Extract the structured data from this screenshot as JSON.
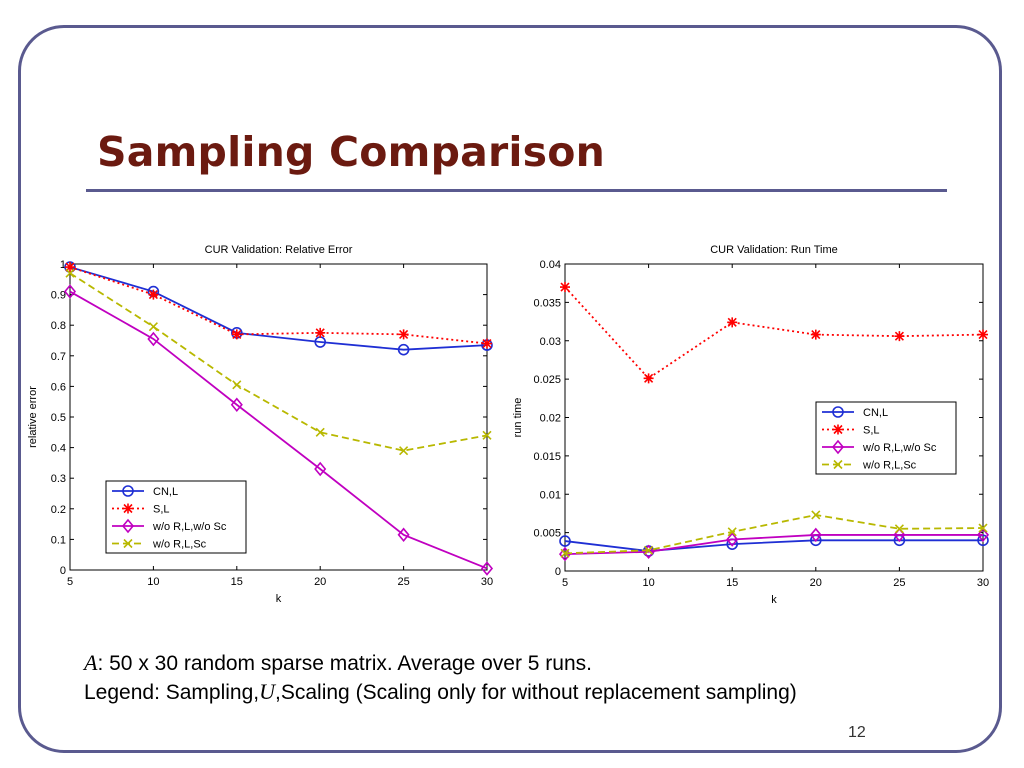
{
  "slide": {
    "title": "Sampling Comparison",
    "caption_line1": {
      "var": "A",
      "text": ": 50 x 30 random sparse matrix.  Average over 5 runs."
    },
    "caption_line2": {
      "before": "Legend: Sampling,",
      "var": "U",
      "after": ",Scaling (Scaling only for without replacement sampling)"
    },
    "page_number": "12"
  },
  "chart_data": [
    {
      "type": "line",
      "title": "CUR Validation: Relative Error",
      "xlabel": "k",
      "ylabel": "relative error",
      "xlim": [
        5,
        30
      ],
      "ylim": [
        0,
        1
      ],
      "x_ticks": [
        "5",
        "10",
        "15",
        "20",
        "25",
        "30"
      ],
      "y_ticks": [
        "0",
        "0.1",
        "0.2",
        "0.3",
        "0.4",
        "0.5",
        "0.6",
        "0.7",
        "0.8",
        "0.9",
        "1"
      ],
      "legend_position": "bottom-left",
      "x": [
        5,
        10,
        15,
        20,
        25,
        30
      ],
      "series": [
        {
          "name": "CN,L",
          "color": "#1f2fd4",
          "dash": "solid",
          "marker": "circle",
          "values": [
            0.99,
            0.91,
            0.775,
            0.745,
            0.72,
            0.735
          ]
        },
        {
          "name": "S,L",
          "color": "#ff0000",
          "dash": "dotted",
          "marker": "star",
          "values": [
            0.99,
            0.9,
            0.77,
            0.775,
            0.77,
            0.74
          ]
        },
        {
          "name": "w/o R,L,w/o Sc",
          "color": "#c000c0",
          "dash": "solid",
          "marker": "diamond",
          "values": [
            0.91,
            0.755,
            0.54,
            0.33,
            0.115,
            0.005
          ]
        },
        {
          "name": "w/o R,L,Sc",
          "color": "#b8b800",
          "dash": "dashed",
          "marker": "x",
          "values": [
            0.97,
            0.795,
            0.605,
            0.45,
            0.39,
            0.44
          ]
        }
      ]
    },
    {
      "type": "line",
      "title": "CUR Validation: Run Time",
      "xlabel": "k",
      "ylabel": "run time",
      "xlim": [
        5,
        30
      ],
      "ylim": [
        0,
        0.04
      ],
      "x_ticks": [
        "5",
        "10",
        "15",
        "20",
        "25",
        "30"
      ],
      "y_ticks": [
        "0",
        "0.005",
        "0.01",
        "0.015",
        "0.02",
        "0.025",
        "0.03",
        "0.035",
        "0.04"
      ],
      "legend_position": "right",
      "x": [
        5,
        10,
        15,
        20,
        25,
        30
      ],
      "series": [
        {
          "name": "CN,L",
          "color": "#1f2fd4",
          "dash": "solid",
          "marker": "circle",
          "values": [
            0.0039,
            0.0026,
            0.0035,
            0.004,
            0.004,
            0.004
          ]
        },
        {
          "name": "S,L",
          "color": "#ff0000",
          "dash": "dotted",
          "marker": "star",
          "values": [
            0.037,
            0.0251,
            0.0324,
            0.0308,
            0.0306,
            0.0308
          ]
        },
        {
          "name": "w/o R,L,w/o Sc",
          "color": "#c000c0",
          "dash": "solid",
          "marker": "diamond",
          "values": [
            0.0022,
            0.0025,
            0.0041,
            0.0047,
            0.0047,
            0.0047
          ]
        },
        {
          "name": "w/o R,L,Sc",
          "color": "#b8b800",
          "dash": "dashed",
          "marker": "x",
          "values": [
            0.0023,
            0.0027,
            0.0051,
            0.0073,
            0.0055,
            0.0056
          ]
        }
      ]
    }
  ]
}
